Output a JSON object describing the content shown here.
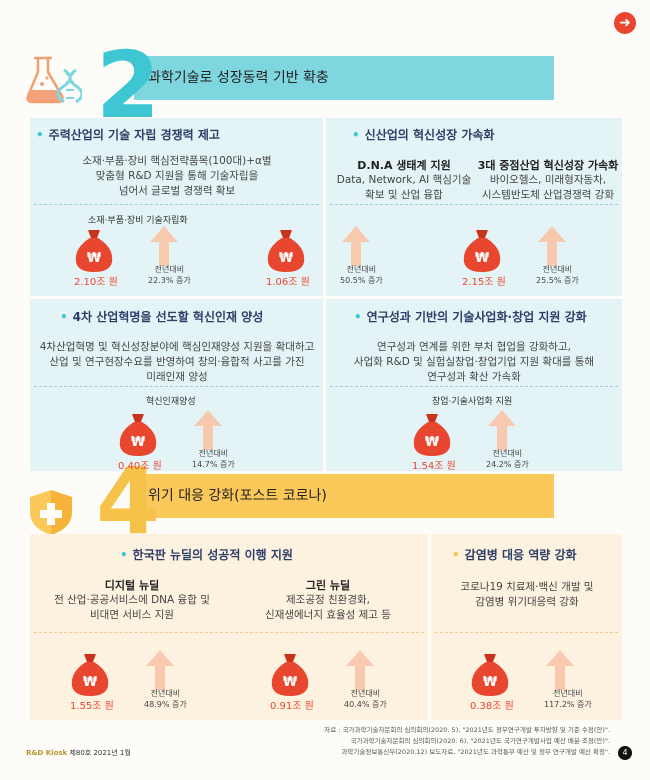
{
  "nav": {
    "next_icon": "➜"
  },
  "section2": {
    "number": "2",
    "title": "과학기술로 성장동력 기반 확충",
    "panels": [
      {
        "heading": "주력산업의 기술 자립 경쟁력 제고",
        "desc": [
          "소재·부품·장비 핵심전략품목(100대)+α별",
          "맞춤형 R&D 지원을 통해 기술자립을",
          "넘어서 글로벌 경쟁력 확보"
        ],
        "sub_title": "소재·부품·장비 기술자립화",
        "amount": "2.10조 원",
        "rate_label": "전년대비",
        "rate": "22.3% 증가"
      },
      {
        "heading": "신산업의 혁신성장 가속화",
        "items": [
          {
            "title": "D.N.A 생태계 지원",
            "desc": [
              "Data, Network, AI 핵심기술",
              "확보 및 산업 융합"
            ],
            "amount": "1.06조 원",
            "rate_label": "전년대비",
            "rate": "50.5% 증가"
          },
          {
            "title": "3대 중점산업 혁신성장 가속화",
            "desc": [
              "바이오헬스, 미래형자동차,",
              "시스템반도체 산업경쟁력 강화"
            ],
            "amount": "2.15조 원",
            "rate_label": "전년대비",
            "rate": "25.5% 증가"
          }
        ]
      },
      {
        "heading": "4차 산업혁명을 선도할 혁신인재 양성",
        "desc": [
          "4차산업혁명 및 혁신성장분야에 핵심인재양성 지원을 확대하고",
          "산업 및 연구현장수요를 반영하여 창의·융합적 사고를 가진",
          "미래인재 양성"
        ],
        "sub_title": "혁신인재양성",
        "amount": "0.40조 원",
        "rate_label": "전년대비",
        "rate": "14.7% 증가"
      },
      {
        "heading": "연구성과 기반의 기술사업화·창업 지원 강화",
        "desc": [
          "연구성과 연계를 위한 부처 협업을 강화하고,",
          "사업화 R&D 및 실험실창업·창업기업 지원 확대를 통해",
          "연구성과 확산 가속화"
        ],
        "sub_title": "창업·기술사업화 지원",
        "amount": "1.54조 원",
        "rate_label": "전년대비",
        "rate": "24.2% 증가"
      }
    ]
  },
  "section4": {
    "number": "4",
    "title": "위기 대응 강화(포스트 코로나)",
    "panels": [
      {
        "heading": "한국판 뉴딜의 성공적 이행 지원",
        "items": [
          {
            "title": "디지털 뉴딜",
            "desc": [
              "전 산업·공공서비스에 DNA 융합 및",
              "비대면 서비스 지원"
            ],
            "amount": "1.55조 원",
            "rate_label": "전년대비",
            "rate": "48.9% 증가"
          },
          {
            "title": "그린 뉴딜",
            "desc": [
              "제조공정 친환경화,",
              "신재생에너지 효율성 제고 등"
            ],
            "amount": "0.91조 원",
            "rate_label": "전년대비",
            "rate": "40.4% 증가"
          }
        ]
      },
      {
        "heading": "감염병 대응 역량 강화",
        "desc": [
          "코로나19 치료제·백신 개발 및",
          "감염병 위기대응력 강화"
        ],
        "amount": "0.38조 원",
        "rate_label": "전년대비",
        "rate": "117.2% 증가"
      }
    ]
  },
  "footer": {
    "sources": [
      "자료 : 국가과학기술자문회의 심의회의(2020. 5), \"2021년도 정부연구개발 투자방향 및 기준 수정(안)\".",
      "국가과학기술자문회의 심의회의(2020. 6), \"2021년도 국가연구개발사업 예산 배분·조정(안)\".",
      "과학기술정보통신부(2020.12) 보도자료, \"2021년도 과학통부 예산 및 정부 연구개발 예산 확정\"."
    ],
    "kiosk_name": "R&D Kiosk",
    "kiosk_issue": "제80호 2021년 1월",
    "page": "4"
  },
  "colors": {
    "teal": "#3ec7d3",
    "yellow": "#f7c24a",
    "bag": "#e8462e",
    "arrow": "#f7c9ae"
  },
  "icons": [
    "next-arrow-icon",
    "flask-dna-icon",
    "shield-icon",
    "money-bag-icon",
    "up-arrow-icon"
  ]
}
